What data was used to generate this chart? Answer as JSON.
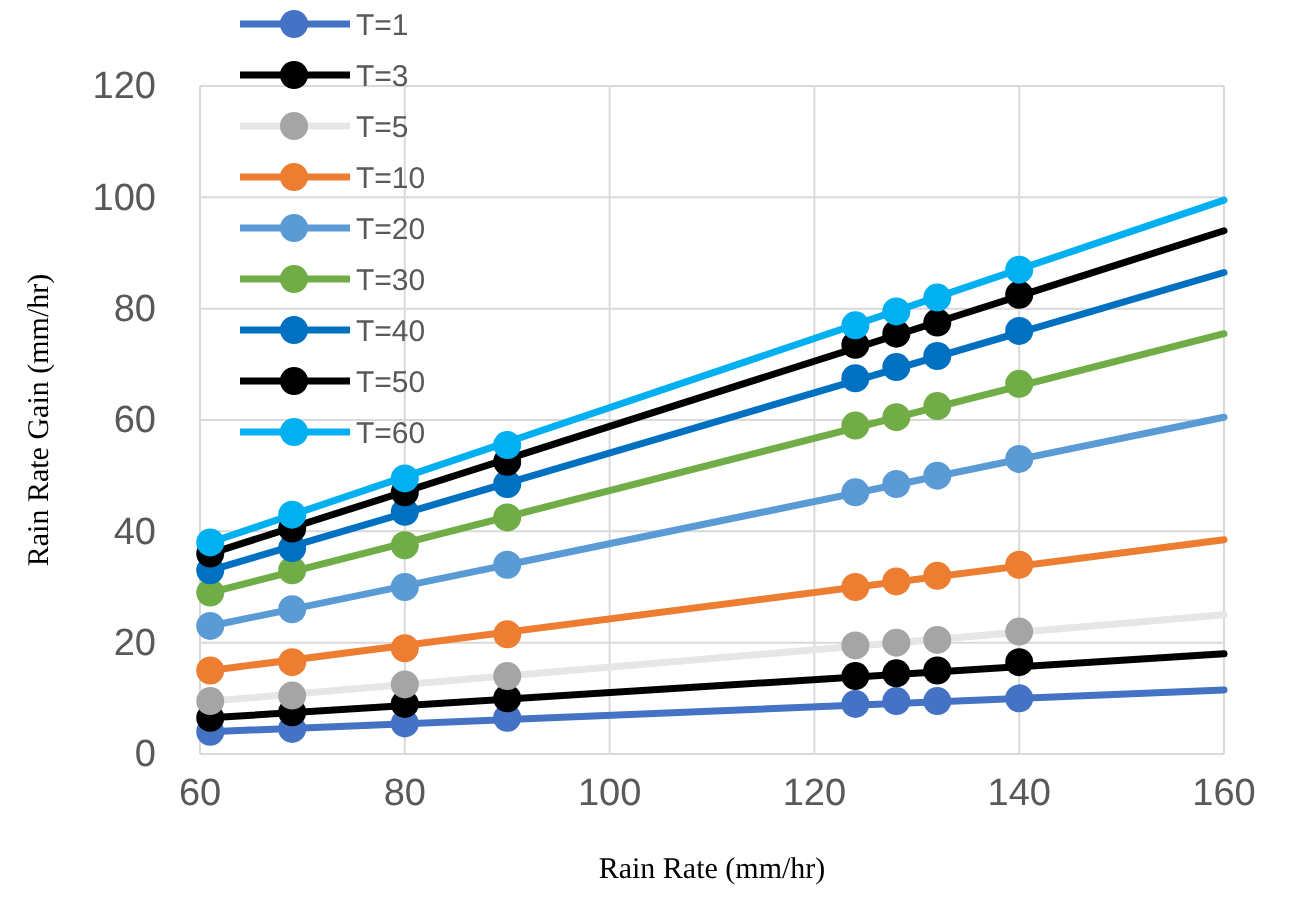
{
  "chart_data": {
    "type": "scatter",
    "xlabel": "Rain Rate (mm/hr)",
    "ylabel": "Rain Rate Gain (mm/hr)",
    "xlim": [
      60,
      160
    ],
    "xticks": [
      60,
      80,
      100,
      120,
      140,
      160
    ],
    "ylim": [
      0,
      120
    ],
    "yticks": [
      0,
      20,
      40,
      60,
      80,
      100,
      120
    ],
    "grid": true,
    "legend": "top left",
    "marker": "circle",
    "series": [
      {
        "name": "T=1",
        "color": "#4472c4",
        "x": [
          61,
          69,
          80,
          90,
          124,
          128,
          132,
          140
        ],
        "values": [
          4,
          4.5,
          5.5,
          6.5,
          9,
          9.5,
          9.5,
          10
        ]
      },
      {
        "name": "T=3",
        "color": "#000000",
        "x": [
          61,
          69,
          80,
          90,
          124,
          128,
          132,
          140
        ],
        "values": [
          6.5,
          7.5,
          9,
          10,
          14,
          14.5,
          15,
          16.5
        ]
      },
      {
        "name": "T=5",
        "color": "#a5a5a5",
        "x": [
          61,
          69,
          80,
          90,
          124,
          128,
          132,
          140
        ],
        "values": [
          9.5,
          10.5,
          12.5,
          14,
          19.5,
          20,
          20.5,
          22
        ]
      },
      {
        "name": "T=10",
        "color": "#ed7d31",
        "x": [
          61,
          69,
          80,
          90,
          124,
          128,
          132,
          140
        ],
        "values": [
          15,
          16.5,
          19,
          21.5,
          30,
          31,
          32,
          34
        ]
      },
      {
        "name": "T=20",
        "color": "#5b9bd5",
        "x": [
          61,
          69,
          80,
          90,
          124,
          128,
          132,
          140
        ],
        "values": [
          23,
          26,
          30,
          34,
          47,
          48.5,
          50,
          53
        ]
      },
      {
        "name": "T=30",
        "color": "#70ad47",
        "x": [
          61,
          69,
          80,
          90,
          124,
          128,
          132,
          140
        ],
        "values": [
          29,
          33,
          37.5,
          42.5,
          59,
          60.5,
          62.5,
          66.5
        ]
      },
      {
        "name": "T=40",
        "color": "#0070c0",
        "x": [
          61,
          69,
          80,
          90,
          124,
          128,
          132,
          140
        ],
        "values": [
          33,
          37,
          43.5,
          48.5,
          67.5,
          69.5,
          71.5,
          76
        ]
      },
      {
        "name": "T=50",
        "color": "#000000",
        "x": [
          61,
          69,
          80,
          90,
          124,
          128,
          132,
          140
        ],
        "values": [
          36,
          40.5,
          47,
          52.5,
          73.5,
          75.5,
          77.5,
          82.5
        ]
      },
      {
        "name": "T=60",
        "color": "#00b0f0",
        "x": [
          61,
          69,
          80,
          90,
          124,
          128,
          132,
          140
        ],
        "values": [
          38,
          43,
          49.5,
          55.5,
          77,
          79.5,
          82,
          87
        ]
      },
      {
        "type": "line",
        "marker": "none",
        "color": "#4472c4",
        "x": [
          61,
          160
        ],
        "values": [
          4,
          11.5
        ]
      },
      {
        "type": "line",
        "marker": "none",
        "color": "#000000",
        "x": [
          61,
          160
        ],
        "values": [
          6.5,
          18
        ]
      },
      {
        "type": "line",
        "marker": "none",
        "color": "#e6e6e6",
        "x": [
          61,
          160
        ],
        "values": [
          9.5,
          25
        ]
      },
      {
        "type": "line",
        "marker": "none",
        "color": "#ed7d31",
        "x": [
          61,
          160
        ],
        "values": [
          15,
          38.5
        ]
      },
      {
        "type": "line",
        "marker": "none",
        "color": "#5b9bd5",
        "x": [
          61,
          160
        ],
        "values": [
          23,
          60.5
        ]
      },
      {
        "type": "line",
        "marker": "none",
        "color": "#70ad47",
        "x": [
          61,
          160
        ],
        "values": [
          29,
          75.5
        ]
      },
      {
        "type": "line",
        "marker": "none",
        "color": "#0070c0",
        "x": [
          61,
          160
        ],
        "values": [
          33,
          86.5
        ]
      },
      {
        "type": "line",
        "marker": "none",
        "color": "#000000",
        "x": [
          61,
          160
        ],
        "values": [
          36,
          94
        ]
      },
      {
        "type": "line",
        "marker": "none",
        "color": "#00b0f0",
        "x": [
          61,
          160
        ],
        "values": [
          38,
          99.5
        ]
      }
    ]
  }
}
